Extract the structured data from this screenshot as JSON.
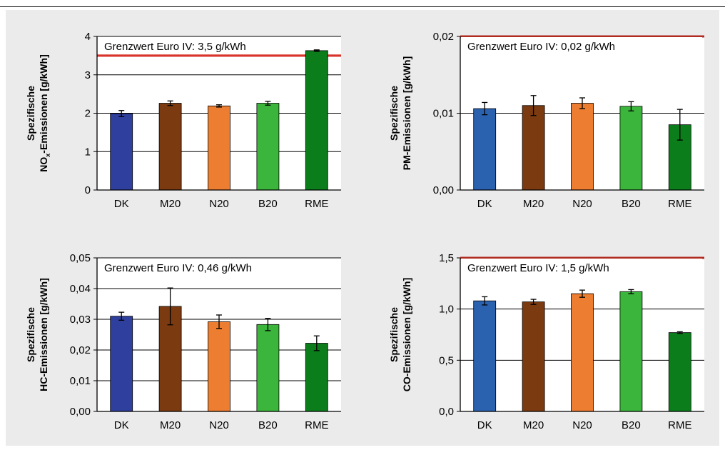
{
  "chart_data": [
    {
      "type": "bar",
      "categories": [
        "DK",
        "M20",
        "N20",
        "B20",
        "RME"
      ],
      "values": [
        1.99,
        2.26,
        2.19,
        2.26,
        3.63
      ],
      "errors": [
        0.08,
        0.06,
        0.03,
        0.05,
        0.02
      ],
      "colors": [
        "#2f3f9e",
        "#7b3a10",
        "#ec7d31",
        "#3bb53b",
        "#0b7d1b"
      ],
      "ylabel_line1": "Spezifische",
      "ylabel_line2": "NO",
      "ylabel_sub": "x",
      "ylabel_line2_rest": "-Emissionen [g/kWh]",
      "ylim": [
        0,
        4
      ],
      "yticks": [
        0,
        1,
        2,
        3,
        4
      ],
      "ytick_labels": [
        "0",
        "1",
        "2",
        "3",
        "4"
      ],
      "limit_value": 3.5,
      "limit_color": "#d9342b",
      "annotation": "Grenzwert Euro IV: 3,5 g/kWh",
      "grid": true
    },
    {
      "type": "bar",
      "categories": [
        "DK",
        "M20",
        "N20",
        "B20",
        "RME"
      ],
      "values": [
        0.0106,
        0.011,
        0.0113,
        0.0109,
        0.0085
      ],
      "errors": [
        0.0008,
        0.0013,
        0.0007,
        0.0006,
        0.002
      ],
      "colors": [
        "#2a62b0",
        "#7b3a10",
        "#ec7d31",
        "#3bb53b",
        "#0b7d1b"
      ],
      "ylabel_line1": "Spezifische",
      "ylabel_line2": "PM-Emissionen [g/kWh]",
      "ylim": [
        0,
        0.02
      ],
      "yticks": [
        0,
        0.01,
        0.02
      ],
      "ytick_labels": [
        "0,00",
        "0,01",
        "0,02"
      ],
      "limit_value": 0.02,
      "limit_color": "#b02b20",
      "annotation": "Grenzwert Euro IV: 0,02 g/kWh",
      "grid": true
    },
    {
      "type": "bar",
      "categories": [
        "DK",
        "M20",
        "N20",
        "B20",
        "RME"
      ],
      "values": [
        0.031,
        0.0342,
        0.0292,
        0.0283,
        0.0222
      ],
      "errors": [
        0.0013,
        0.006,
        0.0022,
        0.002,
        0.0024
      ],
      "colors": [
        "#2f3f9e",
        "#7b3a10",
        "#ec7d31",
        "#3bb53b",
        "#0b7d1b"
      ],
      "ylabel_line1": "Spezifische",
      "ylabel_line2": "HC-Emissionen [g/kWh]",
      "ylim": [
        0,
        0.05
      ],
      "yticks": [
        0,
        0.01,
        0.02,
        0.03,
        0.04,
        0.05
      ],
      "ytick_labels": [
        "0,00",
        "0,01",
        "0,02",
        "0,03",
        "0,04",
        "0,05"
      ],
      "limit_value": null,
      "limit_color": "#d9342b",
      "annotation": "Grenzwert Euro IV: 0,46 g/kWh",
      "grid": true
    },
    {
      "type": "bar",
      "categories": [
        "DK",
        "M20",
        "N20",
        "B20",
        "RME"
      ],
      "values": [
        1.08,
        1.07,
        1.15,
        1.17,
        0.77
      ],
      "errors": [
        0.04,
        0.025,
        0.035,
        0.02,
        0.008
      ],
      "colors": [
        "#2a62b0",
        "#7b3a10",
        "#ec7d31",
        "#3bb53b",
        "#0b7d1b"
      ],
      "ylabel_line1": "Spezifische",
      "ylabel_line2": "CO-Emissionen [g/kWh]",
      "ylim": [
        0,
        1.5
      ],
      "yticks": [
        0,
        0.5,
        1.0,
        1.5
      ],
      "ytick_labels": [
        "0,0",
        "0,5",
        "1,0",
        "1,5"
      ],
      "limit_value": 1.5,
      "limit_color": "#b02b20",
      "annotation": "Grenzwert Euro IV: 1,5 g/kWh",
      "grid": true
    }
  ]
}
